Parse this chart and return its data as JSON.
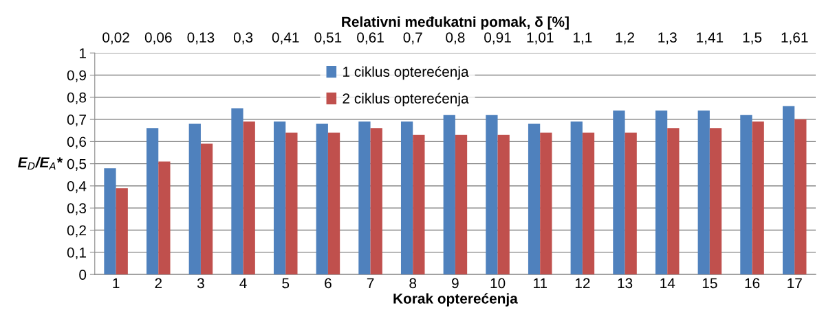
{
  "chart_data": {
    "type": "bar",
    "x2label": "Relativni međukatni pomak, δ [%]",
    "xlabel": "Korak opterećenja",
    "ylabel": "E$_{D}$/E$_{A}$*",
    "categories": [
      "1",
      "2",
      "3",
      "4",
      "5",
      "6",
      "7",
      "8",
      "9",
      "10",
      "11",
      "12",
      "13",
      "14",
      "15",
      "16",
      "17"
    ],
    "annotations": [
      "0,02",
      "0,06",
      "0,13",
      "0,3",
      "0,41",
      "0,51",
      "0,61",
      "0,7",
      "0,8",
      "0,91",
      "1,01",
      "1,1",
      "1,2",
      "1,3",
      "1,41",
      "1,5",
      "1,61"
    ],
    "series": [
      {
        "name": "1 ciklus opterećenja",
        "color": "#4f81bd",
        "values": [
          0.48,
          0.66,
          0.68,
          0.75,
          0.69,
          0.68,
          0.69,
          0.69,
          0.72,
          0.72,
          0.68,
          0.69,
          0.74,
          0.74,
          0.74,
          0.72,
          0.76
        ]
      },
      {
        "name": "2 ciklus opterećenja",
        "color": "#c0504d",
        "values": [
          0.39,
          0.51,
          0.59,
          0.69,
          0.64,
          0.64,
          0.66,
          0.63,
          0.63,
          0.63,
          0.64,
          0.64,
          0.64,
          0.66,
          0.66,
          0.69,
          0.7
        ]
      }
    ],
    "ylim": [
      0,
      1
    ],
    "yticks": [
      {
        "value": 0,
        "label": "0"
      },
      {
        "value": 0.1,
        "label": "0,1"
      },
      {
        "value": 0.2,
        "label": "0,2"
      },
      {
        "value": 0.3,
        "label": "0,3"
      },
      {
        "value": 0.4,
        "label": "0,4"
      },
      {
        "value": 0.5,
        "label": "0,5"
      },
      {
        "value": 0.6,
        "label": "0,6"
      },
      {
        "value": 0.7,
        "label": "0,7"
      },
      {
        "value": 0.8,
        "label": "0,8"
      },
      {
        "value": 0.9,
        "label": "0,9"
      },
      {
        "value": 1,
        "label": "1"
      }
    ],
    "grid": "y",
    "legend": "top"
  }
}
